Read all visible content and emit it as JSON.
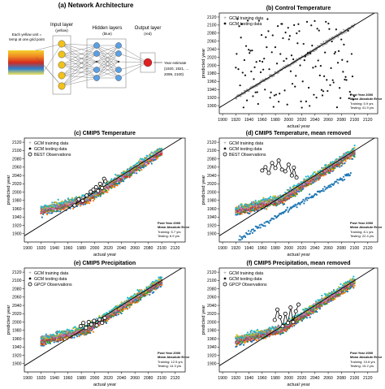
{
  "panels": {
    "a": {
      "title": "(a) Network Architecture",
      "input_caption_1": "Each yellow unit =",
      "input_caption_2": "temp at one grid point",
      "input_layer": "Input layer",
      "input_layer_sub": "(yellow)",
      "hidden_layers": "Hidden layers",
      "hidden_layers_sub": "(blue)",
      "output_layer": "Output layer",
      "output_layer_sub": "(red)",
      "output_text_1": "Year estimate",
      "output_text_2": "(1920, 1921, ...",
      "output_text_3": "2099, 2100)",
      "colors": {
        "input": "#f2c21b",
        "hidden": "#5aa0e6",
        "output": "#e02020"
      }
    }
  },
  "chart_data": [
    {
      "id": "b",
      "type": "scatter",
      "title": "(b) Control Temperature",
      "xlabel": "actual year",
      "ylabel": "predicted year",
      "xlim": [
        1895,
        2135
      ],
      "ylim": [
        1880,
        2130
      ],
      "xticks": [
        1900,
        1920,
        1940,
        1960,
        1980,
        2000,
        2020,
        2040,
        2060,
        2080,
        2100,
        2120
      ],
      "yticks": [
        1900,
        1920,
        1940,
        1960,
        1980,
        2000,
        2020,
        2040,
        2060,
        2080,
        2100,
        2120
      ],
      "legend": [
        "GCM training data",
        "GCM testing data"
      ],
      "legend_loc": "top-left",
      "note_title": "Post Year 2000\nMean Absolute Error",
      "note_lines": [
        "Training:  5.9 yrs",
        "Testing: 41.9 yrs"
      ],
      "series": [
        {
          "role": "train",
          "x_range": [
            1920,
            2100
          ],
          "noise": 3,
          "color": "#999999"
        },
        {
          "role": "test",
          "x_range": [
            1920,
            2100
          ],
          "y_range": [
            1895,
            2115
          ],
          "random": true,
          "color": "#111111"
        }
      ]
    },
    {
      "id": "c",
      "type": "scatter",
      "title": "(c) CMIP5 Temperature",
      "xlabel": "actual year",
      "ylabel": "predicted year",
      "xlim": [
        1895,
        2135
      ],
      "ylim": [
        1880,
        2130
      ],
      "xticks": [
        1900,
        1920,
        1940,
        1960,
        1980,
        2000,
        2020,
        2040,
        2060,
        2080,
        2100,
        2120
      ],
      "yticks": [
        1900,
        1920,
        1940,
        1960,
        1980,
        2000,
        2020,
        2040,
        2060,
        2080,
        2100,
        2120
      ],
      "legend": [
        "GCM training data",
        "GCM testing data",
        "BEST Observations"
      ],
      "legend_loc": "top-left",
      "note_title": "Post Year 2000\nMean Absolute Error",
      "note_lines": [
        "Training:  5.7 yrs",
        "Testing:  6.9 yrs"
      ],
      "series": [
        {
          "role": "models",
          "colors": [
            "#1f77b4",
            "#ff7f0e",
            "#2ca02c",
            "#d62728",
            "#9467bd",
            "#8c564b",
            "#e377c2",
            "#7f7f7f",
            "#bcbd22",
            "#17becf"
          ]
        },
        {
          "role": "obs",
          "x": [
            1970,
            1976,
            1982,
            1988,
            1994,
            1998,
            2002,
            2005,
            2008,
            2011,
            2014,
            2016
          ],
          "y": [
            1968,
            1983,
            1979,
            1992,
            2001,
            2006,
            2012,
            2003,
            2020,
            2010,
            2032,
            2026
          ]
        }
      ]
    },
    {
      "id": "d",
      "type": "scatter",
      "title": "(d) CMIP5 Temperature, mean removed",
      "xlabel": "actual year",
      "ylabel": "predicted year",
      "xlim": [
        1895,
        2135
      ],
      "ylim": [
        1880,
        2130
      ],
      "xticks": [
        1900,
        1920,
        1940,
        1960,
        1980,
        2000,
        2020,
        2040,
        2060,
        2080,
        2100,
        2120
      ],
      "yticks": [
        1900,
        1920,
        1940,
        1960,
        1980,
        2000,
        2020,
        2040,
        2060,
        2080,
        2100,
        2120
      ],
      "legend": [
        "GCM training data",
        "GCM testing data",
        "BEST Observations"
      ],
      "legend_loc": "top-left",
      "note_title": "Post Year 2000\nMean Absolute Error",
      "note_lines": [
        "Training:  8.1 yrs",
        "Testing: 22.4 yrs"
      ],
      "series": [
        {
          "role": "models",
          "colors": [
            "#1f77b4",
            "#ff7f0e",
            "#2ca02c",
            "#d62728",
            "#9467bd",
            "#8c564b",
            "#e377c2",
            "#7f7f7f",
            "#bcbd22",
            "#17becf"
          ]
        },
        {
          "role": "outlier",
          "color": "#1f77b4",
          "x_range": [
            1925,
            2095
          ],
          "y_range": [
            1888,
            2045
          ]
        },
        {
          "role": "obs",
          "x": [
            1960,
            1965,
            1970,
            1975,
            1980,
            1985,
            1990,
            1995,
            2000,
            2005,
            2008,
            2012
          ],
          "y": [
            2052,
            2060,
            2046,
            2070,
            2058,
            2076,
            2054,
            2050,
            2066,
            2040,
            2059,
            2035
          ]
        }
      ]
    },
    {
      "id": "e",
      "type": "scatter",
      "title": "(e) CMIP5 Precipitation",
      "xlabel": "actual year",
      "ylabel": "predicted year",
      "xlim": [
        1895,
        2135
      ],
      "ylim": [
        1880,
        2130
      ],
      "xticks": [
        1900,
        1920,
        1940,
        1960,
        1980,
        2000,
        2020,
        2040,
        2060,
        2080,
        2100,
        2120
      ],
      "yticks": [
        1900,
        1920,
        1940,
        1960,
        1980,
        2000,
        2020,
        2040,
        2060,
        2080,
        2100,
        2120
      ],
      "legend": [
        "GCM training data",
        "GCM testing data",
        "GPCP Observations"
      ],
      "legend_loc": "top-left",
      "note_title": "Post Year 2000\nMean Absolute Error",
      "note_lines": [
        "Training: 12.5 yrs",
        "Testing: 14.3 yrs"
      ],
      "series": [
        {
          "role": "models",
          "colors": [
            "#1f77b4",
            "#ff7f0e",
            "#2ca02c",
            "#d62728",
            "#9467bd",
            "#8c564b",
            "#e377c2",
            "#7f7f7f",
            "#bcbd22",
            "#17becf"
          ]
        },
        {
          "role": "obs",
          "x": [
            1979,
            1983,
            1987,
            1991,
            1995,
            1999,
            2003,
            2007,
            2011,
            2015
          ],
          "y": [
            1990,
            1998,
            1986,
            2000,
            1994,
            2003,
            1992,
            2006,
            1998,
            2010
          ]
        }
      ]
    },
    {
      "id": "f",
      "type": "scatter",
      "title": "(f) CMIP5 Precipitation, mean removed",
      "xlabel": "actual year",
      "ylabel": "predicted year",
      "xlim": [
        1895,
        2135
      ],
      "ylim": [
        1880,
        2130
      ],
      "xticks": [
        1900,
        1920,
        1940,
        1960,
        1980,
        2000,
        2020,
        2040,
        2060,
        2080,
        2100,
        2120
      ],
      "yticks": [
        1900,
        1920,
        1940,
        1960,
        1980,
        2000,
        2020,
        2040,
        2060,
        2080,
        2100,
        2120
      ],
      "legend": [
        "GCM training data",
        "GCM testing data",
        "GPCP Observations"
      ],
      "legend_loc": "top-left",
      "note_title": "Post Year 2000\nMean Absolute Error",
      "note_lines": [
        "Training: 10.6 yrs",
        "Testing: 15.2 yrs"
      ],
      "series": [
        {
          "role": "models",
          "colors": [
            "#1f77b4",
            "#ff7f0e",
            "#2ca02c",
            "#d62728",
            "#9467bd",
            "#8c564b",
            "#e377c2",
            "#7f7f7f",
            "#bcbd22",
            "#17becf"
          ]
        },
        {
          "role": "obs",
          "x": [
            1979,
            1983,
            1987,
            1991,
            1995,
            1999,
            2003,
            2007,
            2011,
            2015
          ],
          "y": [
            2005,
            2030,
            2012,
            1990,
            2020,
            1998,
            2035,
            2000,
            2026,
            2042
          ]
        }
      ]
    }
  ]
}
